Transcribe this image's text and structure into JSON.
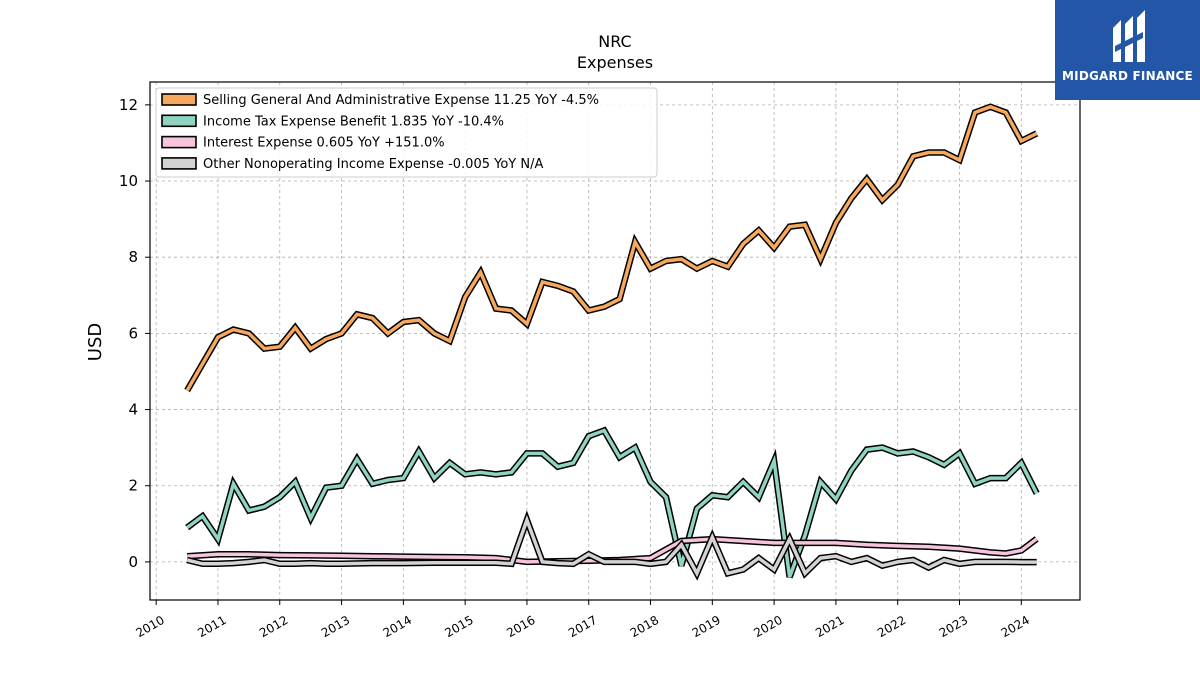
{
  "logo": {
    "text": "MIDGARD FINANCE",
    "bg_color": "#2456a8"
  },
  "chart_data": {
    "type": "line",
    "title": "NRC",
    "subtitle": "Expenses",
    "ylabel": "USD",
    "xlabel": "",
    "ylim": [
      -1.0,
      12.6
    ],
    "xlim": [
      2009.9,
      2024.95
    ],
    "grid": true,
    "legend_position": "top-left",
    "x_ticks": [
      2010,
      2011,
      2012,
      2013,
      2014,
      2015,
      2016,
      2017,
      2018,
      2019,
      2020,
      2021,
      2022,
      2023,
      2024
    ],
    "x_tick_labels": [
      "2010",
      "2011",
      "2012",
      "2013",
      "2014",
      "2015",
      "2016",
      "2017",
      "2018",
      "2019",
      "2020",
      "2021",
      "2022",
      "2023",
      "2024"
    ],
    "y_ticks": [
      0,
      2,
      4,
      6,
      8,
      10,
      12
    ],
    "y_tick_labels": [
      "0",
      "2",
      "4",
      "6",
      "8",
      "10",
      "12"
    ],
    "series": [
      {
        "name": "Selling General And Administrative Expense  11.25 YoY -4.5%",
        "color": "#f6a95e",
        "x": [
          2010.5,
          2010.75,
          2011.0,
          2011.25,
          2011.5,
          2011.75,
          2012.0,
          2012.25,
          2012.5,
          2012.75,
          2013.0,
          2013.25,
          2013.5,
          2013.75,
          2014.0,
          2014.25,
          2014.5,
          2014.75,
          2015.0,
          2015.25,
          2015.5,
          2015.75,
          2016.0,
          2016.25,
          2016.5,
          2016.75,
          2017.0,
          2017.25,
          2017.5,
          2017.75,
          2018.0,
          2018.25,
          2018.5,
          2018.75,
          2019.0,
          2019.25,
          2019.5,
          2019.75,
          2020.0,
          2020.25,
          2020.5,
          2020.75,
          2021.0,
          2021.25,
          2021.5,
          2021.75,
          2022.0,
          2022.25,
          2022.5,
          2022.75,
          2023.0,
          2023.25,
          2023.5,
          2023.75,
          2024.0,
          2024.25
        ],
        "y": [
          4.5,
          5.2,
          5.9,
          6.1,
          6.0,
          5.6,
          5.65,
          6.15,
          5.6,
          5.85,
          6.0,
          6.5,
          6.4,
          6.0,
          6.3,
          6.35,
          6.0,
          5.8,
          6.95,
          7.6,
          6.65,
          6.6,
          6.25,
          7.35,
          7.25,
          7.1,
          6.6,
          6.7,
          6.9,
          8.4,
          7.7,
          7.9,
          7.95,
          7.7,
          7.9,
          7.75,
          8.35,
          8.7,
          8.25,
          8.8,
          8.85,
          7.95,
          8.9,
          9.55,
          10.05,
          9.5,
          9.9,
          10.65,
          10.75,
          10.75,
          10.55,
          11.8,
          11.95,
          11.8,
          11.05,
          11.25
        ]
      },
      {
        "name": "Income Tax Expense Benefit  1.835 YoY -10.4%",
        "color": "#8fd4c2",
        "x": [
          2010.5,
          2010.75,
          2011.0,
          2011.25,
          2011.5,
          2011.75,
          2012.0,
          2012.25,
          2012.5,
          2012.75,
          2013.0,
          2013.25,
          2013.5,
          2013.75,
          2014.0,
          2014.25,
          2014.5,
          2014.75,
          2015.0,
          2015.25,
          2015.5,
          2015.75,
          2016.0,
          2016.25,
          2016.5,
          2016.75,
          2017.0,
          2017.25,
          2017.5,
          2017.75,
          2018.0,
          2018.25,
          2018.5,
          2018.75,
          2019.0,
          2019.25,
          2019.5,
          2019.75,
          2020.0,
          2020.25,
          2020.5,
          2020.75,
          2021.0,
          2021.25,
          2021.5,
          2021.75,
          2022.0,
          2022.25,
          2022.5,
          2022.75,
          2023.0,
          2023.25,
          2023.5,
          2023.75,
          2024.0,
          2024.25
        ],
        "y": [
          0.9,
          1.2,
          0.6,
          2.05,
          1.35,
          1.45,
          1.7,
          2.1,
          1.15,
          1.95,
          2.0,
          2.7,
          2.05,
          2.15,
          2.2,
          2.9,
          2.2,
          2.6,
          2.3,
          2.35,
          2.3,
          2.35,
          2.85,
          2.85,
          2.5,
          2.6,
          3.3,
          3.45,
          2.75,
          3.0,
          2.1,
          1.7,
          -0.1,
          1.4,
          1.75,
          1.7,
          2.1,
          1.7,
          2.65,
          -0.4,
          0.7,
          2.1,
          1.65,
          2.4,
          2.95,
          3.0,
          2.85,
          2.9,
          2.75,
          2.55,
          2.85,
          2.05,
          2.2,
          2.2,
          2.6,
          1.8
        ]
      },
      {
        "name": "Interest Expense  0.605 YoY +151.0%",
        "color": "#f7c4dd",
        "x": [
          2010.5,
          2011.0,
          2011.5,
          2012.0,
          2012.5,
          2013.0,
          2013.5,
          2014.0,
          2014.5,
          2015.0,
          2015.5,
          2016.0,
          2016.5,
          2017.0,
          2017.5,
          2018.0,
          2018.5,
          2019.0,
          2019.5,
          2020.0,
          2020.5,
          2021.0,
          2021.5,
          2022.0,
          2022.5,
          2023.0,
          2023.5,
          2023.75,
          2024.0,
          2024.25
        ],
        "y": [
          0.15,
          0.2,
          0.2,
          0.18,
          0.17,
          0.16,
          0.15,
          0.14,
          0.13,
          0.12,
          0.1,
          0.0,
          0.02,
          0.03,
          0.05,
          0.1,
          0.55,
          0.6,
          0.55,
          0.5,
          0.5,
          0.5,
          0.45,
          0.42,
          0.4,
          0.35,
          0.25,
          0.22,
          0.3,
          0.605
        ]
      },
      {
        "name": "Other Nonoperating Income Expense  -0.005 YoY N/A",
        "color": "#d3d3d3",
        "x": [
          2010.5,
          2010.75,
          2011.0,
          2011.25,
          2011.5,
          2011.75,
          2012.0,
          2012.25,
          2012.5,
          2012.75,
          2013.0,
          2013.5,
          2014.0,
          2014.5,
          2015.0,
          2015.5,
          2015.75,
          2016.0,
          2016.25,
          2016.5,
          2016.75,
          2017.0,
          2017.25,
          2017.5,
          2017.75,
          2018.0,
          2018.25,
          2018.5,
          2018.75,
          2019.0,
          2019.25,
          2019.5,
          2019.75,
          2020.0,
          2020.25,
          2020.5,
          2020.75,
          2021.0,
          2021.25,
          2021.5,
          2021.75,
          2022.0,
          2022.25,
          2022.5,
          2022.75,
          2023.0,
          2023.25,
          2023.5,
          2023.75,
          2024.0,
          2024.25
        ],
        "y": [
          0.05,
          -0.05,
          -0.05,
          -0.03,
          0.0,
          0.05,
          -0.05,
          -0.05,
          -0.03,
          -0.05,
          -0.05,
          -0.03,
          -0.03,
          -0.02,
          -0.02,
          -0.02,
          -0.05,
          1.1,
          0.0,
          -0.03,
          -0.05,
          0.2,
          0.0,
          0.0,
          0.0,
          -0.05,
          0.0,
          0.45,
          -0.3,
          0.65,
          -0.3,
          -0.2,
          0.1,
          -0.2,
          0.6,
          -0.3,
          0.1,
          0.15,
          0.0,
          0.1,
          -0.1,
          0.0,
          0.05,
          -0.15,
          0.05,
          -0.05,
          0.0,
          0.0,
          0.0,
          -0.005,
          -0.005
        ]
      }
    ]
  }
}
